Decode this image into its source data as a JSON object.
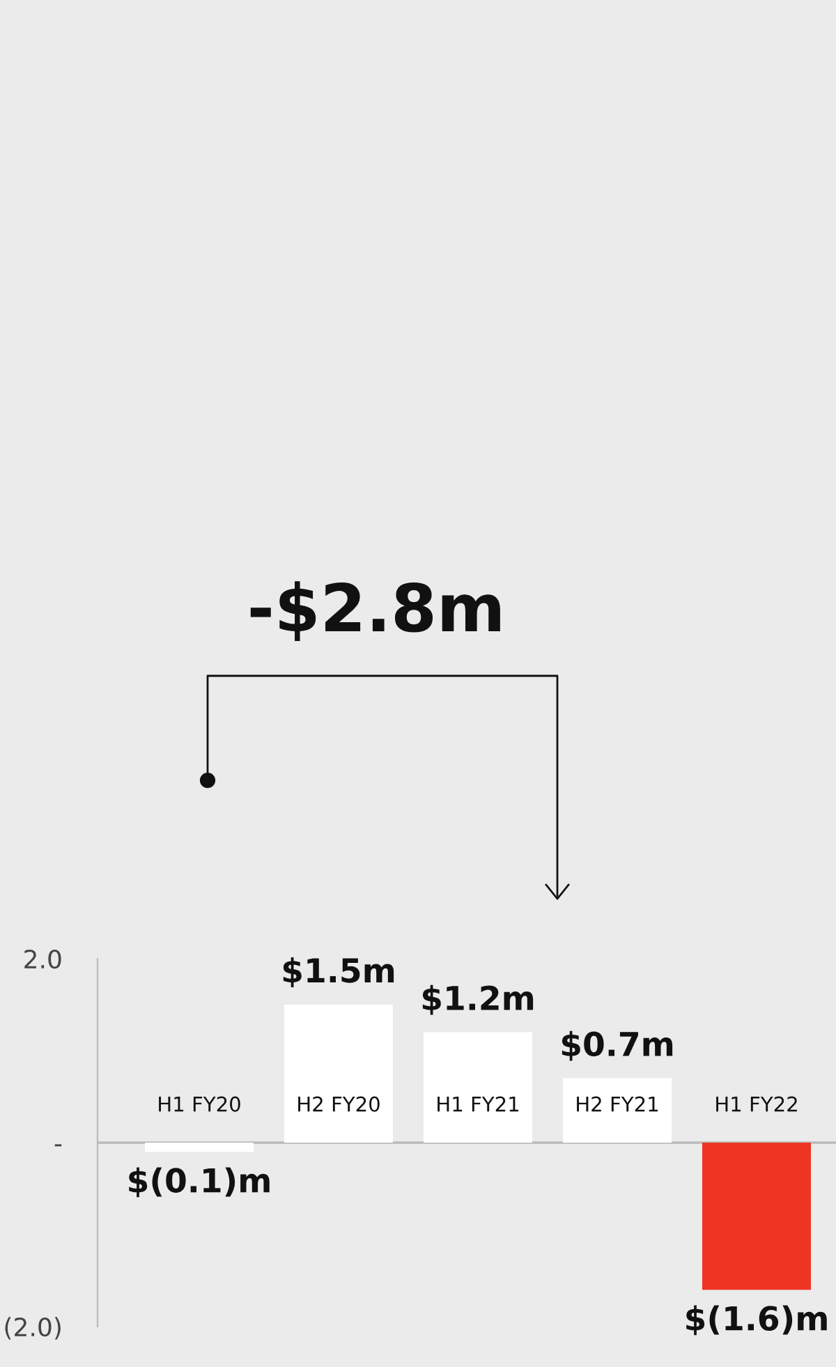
{
  "chart_data": {
    "type": "bar",
    "categories": [
      "H1 FY20",
      "H2 FY20",
      "H1 FY21",
      "H2 FY21",
      "H1 FY22"
    ],
    "values": [
      -0.1,
      1.5,
      1.2,
      0.7,
      -1.6
    ],
    "colors": [
      "#ffffff",
      "#ffffff",
      "#ffffff",
      "#ffffff",
      "#ee3524"
    ],
    "value_labels": [
      "$(0.1)m",
      "$1.5m",
      "$1.2m",
      "$0.7m",
      "$(1.6)m"
    ],
    "ylim": [
      -2.0,
      2.0
    ],
    "yticks": [
      {
        "value": 2.0,
        "label": "2.0"
      },
      {
        "value": 0,
        "label": "-"
      },
      {
        "value": -2.0,
        "label": "(2.0)"
      }
    ],
    "annotations": [
      "-$2.8m"
    ],
    "grid": false,
    "legend": false
  }
}
